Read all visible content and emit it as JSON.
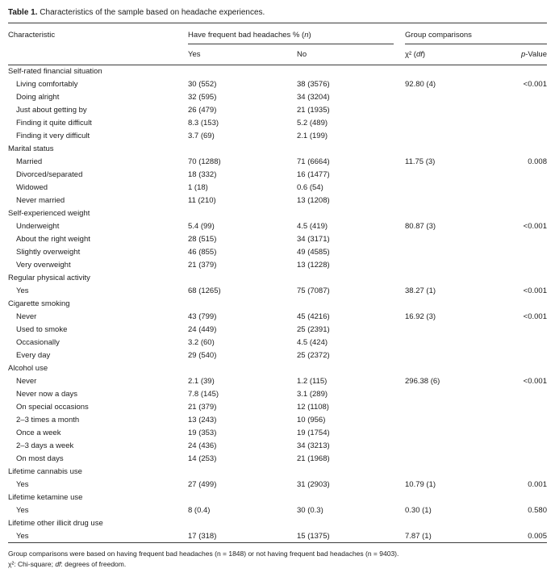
{
  "page": {
    "caption_label": "Table 1.",
    "caption_text": "Characteristics of the sample based on headache experiences."
  },
  "columns": {
    "characteristic": "Characteristic",
    "group1_prefix": "Have frequent bad headaches % (",
    "group1_italic": "n",
    "group1_suffix": ")",
    "yes": "Yes",
    "no": "No",
    "group2": "Group comparisons",
    "chi_prefix": "χ² (",
    "chi_italic": "df",
    "chi_suffix": ")",
    "p_italic": "p",
    "p_suffix": "-Value"
  },
  "sections": [
    {
      "header": "Self-rated financial situation",
      "rows": [
        {
          "label": "Living comfortably",
          "yes": "30 (552)",
          "no": "38 (3576)",
          "chi": "92.80 (4)",
          "p": "<0.001"
        },
        {
          "label": "Doing alright",
          "yes": "32 (595)",
          "no": "34 (3204)",
          "chi": "",
          "p": ""
        },
        {
          "label": "Just about getting by",
          "yes": "26 (479)",
          "no": "21 (1935)",
          "chi": "",
          "p": ""
        },
        {
          "label": "Finding it quite difficult",
          "yes": "8.3 (153)",
          "no": "5.2 (489)",
          "chi": "",
          "p": ""
        },
        {
          "label": "Finding it very difficult",
          "yes": "3.7 (69)",
          "no": "2.1 (199)",
          "chi": "",
          "p": ""
        }
      ]
    },
    {
      "header": "Marital status",
      "rows": [
        {
          "label": "Married",
          "yes": "70 (1288)",
          "no": "71 (6664)",
          "chi": "11.75 (3)",
          "p": "0.008"
        },
        {
          "label": "Divorced/separated",
          "yes": "18 (332)",
          "no": "16 (1477)",
          "chi": "",
          "p": ""
        },
        {
          "label": "Widowed",
          "yes": "1 (18)",
          "no": "0.6 (54)",
          "chi": "",
          "p": ""
        },
        {
          "label": "Never married",
          "yes": "11 (210)",
          "no": "13 (1208)",
          "chi": "",
          "p": ""
        }
      ]
    },
    {
      "header": "Self-experienced weight",
      "rows": [
        {
          "label": "Underweight",
          "yes": "5.4 (99)",
          "no": "4.5 (419)",
          "chi": "80.87 (3)",
          "p": "<0.001"
        },
        {
          "label": "About the right weight",
          "yes": "28 (515)",
          "no": "34 (3171)",
          "chi": "",
          "p": ""
        },
        {
          "label": "Slightly overweight",
          "yes": "46 (855)",
          "no": "49 (4585)",
          "chi": "",
          "p": ""
        },
        {
          "label": "Very overweight",
          "yes": "21 (379)",
          "no": "13 (1228)",
          "chi": "",
          "p": ""
        }
      ]
    },
    {
      "header": "Regular physical activity",
      "rows": [
        {
          "label": "Yes",
          "yes": "68 (1265)",
          "no": "75 (7087)",
          "chi": "38.27 (1)",
          "p": "<0.001"
        }
      ]
    },
    {
      "header": "Cigarette smoking",
      "rows": [
        {
          "label": "Never",
          "yes": "43 (799)",
          "no": "45 (4216)",
          "chi": "16.92 (3)",
          "p": "<0.001"
        },
        {
          "label": "Used to smoke",
          "yes": "24 (449)",
          "no": "25 (2391)",
          "chi": "",
          "p": ""
        },
        {
          "label": "Occasionally",
          "yes": "3.2 (60)",
          "no": "4.5 (424)",
          "chi": "",
          "p": ""
        },
        {
          "label": "Every day",
          "yes": "29 (540)",
          "no": "25 (2372)",
          "chi": "",
          "p": ""
        }
      ]
    },
    {
      "header": "Alcohol use",
      "rows": [
        {
          "label": "Never",
          "yes": "2.1 (39)",
          "no": "1.2 (115)",
          "chi": "296.38 (6)",
          "p": "<0.001"
        },
        {
          "label": "Never now a days",
          "yes": "7.8 (145)",
          "no": "3.1 (289)",
          "chi": "",
          "p": ""
        },
        {
          "label": "On special occasions",
          "yes": "21 (379)",
          "no": "12 (1108)",
          "chi": "",
          "p": ""
        },
        {
          "label": "2–3 times a month",
          "yes": "13 (243)",
          "no": "10 (956)",
          "chi": "",
          "p": ""
        },
        {
          "label": "Once a week",
          "yes": "19 (353)",
          "no": "19 (1754)",
          "chi": "",
          "p": ""
        },
        {
          "label": "2–3 days a week",
          "yes": "24 (436)",
          "no": "34 (3213)",
          "chi": "",
          "p": ""
        },
        {
          "label": "On most days",
          "yes": "14 (253)",
          "no": "21 (1968)",
          "chi": "",
          "p": ""
        }
      ]
    },
    {
      "header": "Lifetime cannabis use",
      "rows": [
        {
          "label": "Yes",
          "yes": "27 (499)",
          "no": "31 (2903)",
          "chi": "10.79 (1)",
          "p": "0.001"
        }
      ]
    },
    {
      "header": "Lifetime ketamine use",
      "rows": [
        {
          "label": "Yes",
          "yes": "8 (0.4)",
          "no": "30 (0.3)",
          "chi": "0.30 (1)",
          "p": "0.580"
        }
      ]
    },
    {
      "header": "Lifetime other illicit drug use",
      "rows": [
        {
          "label": "Yes",
          "yes": "17 (318)",
          "no": "15 (1375)",
          "chi": "7.87 (1)",
          "p": "0.005"
        }
      ]
    }
  ],
  "footnotes": {
    "line1": "Group comparisons were based on having frequent bad headaches (n = 1848) or not having frequent bad headaches (n = 9403).",
    "line2_chi": "χ²",
    "line2_mid": ": Chi-square; ",
    "line2_df": "df",
    "line2_end": ": degrees of freedom."
  }
}
